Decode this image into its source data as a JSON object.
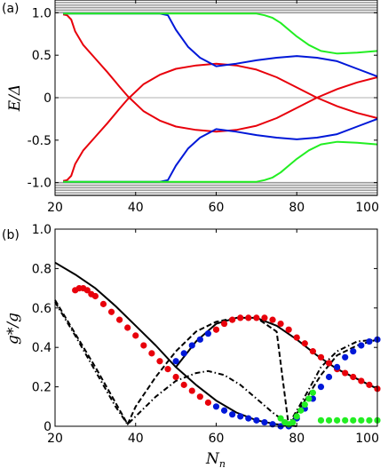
{
  "colors": {
    "red": "#e8000b",
    "blue": "#0018d8",
    "green": "#22ee22",
    "gray": "#9a9a9a",
    "black": "#000000"
  },
  "chart_data": [
    {
      "panel": "(a)",
      "type": "line",
      "xlabel": "",
      "ylabel": "E/Δ",
      "xlim": [
        20,
        100
      ],
      "ylim": [
        -1.15,
        1.15
      ],
      "xticks": [
        "20",
        "40",
        "60",
        "80",
        "100"
      ],
      "yticks": [
        "1.0",
        "0.5",
        "0",
        "-0.5",
        "-1.0"
      ],
      "yticks_values": [
        1.0,
        0.5,
        0,
        -0.5,
        -1.0
      ],
      "reference_line_y": 0,
      "bulk_band_levels": [
        1.0,
        1.03,
        1.06,
        1.09,
        1.12,
        1.15
      ],
      "series": [
        {
          "color_key": "red",
          "x": [
            22,
            23,
            24,
            25,
            27,
            30,
            33,
            36,
            38,
            42,
            46,
            50,
            55,
            60,
            65,
            70,
            75,
            80,
            85,
            90,
            95,
            100
          ],
          "y": [
            0.98,
            0.97,
            0.92,
            0.78,
            0.62,
            0.46,
            0.3,
            0.13,
            0.02,
            -0.16,
            -0.27,
            -0.34,
            -0.38,
            -0.4,
            -0.38,
            -0.33,
            -0.24,
            -0.12,
            0.0,
            0.1,
            0.18,
            0.24
          ]
        },
        {
          "color_key": "red",
          "x": [
            22,
            23,
            24,
            25,
            27,
            30,
            33,
            36,
            38,
            42,
            46,
            50,
            55,
            60,
            65,
            70,
            75,
            80,
            85,
            90,
            95,
            100
          ],
          "y": [
            -0.98,
            -0.97,
            -0.92,
            -0.78,
            -0.62,
            -0.46,
            -0.3,
            -0.13,
            -0.02,
            0.16,
            0.27,
            0.34,
            0.38,
            0.4,
            0.38,
            0.33,
            0.24,
            0.12,
            0.0,
            -0.1,
            -0.18,
            -0.24
          ]
        },
        {
          "color_key": "blue",
          "x": [
            22,
            30,
            40,
            46,
            48,
            50,
            53,
            56,
            60,
            65,
            70,
            75,
            80,
            85,
            90,
            95,
            100
          ],
          "y": [
            0.99,
            0.99,
            0.99,
            0.99,
            0.97,
            0.8,
            0.6,
            0.47,
            0.37,
            0.4,
            0.44,
            0.47,
            0.49,
            0.47,
            0.43,
            0.34,
            0.25
          ]
        },
        {
          "color_key": "blue",
          "x": [
            22,
            30,
            40,
            46,
            48,
            50,
            53,
            56,
            60,
            65,
            70,
            75,
            80,
            85,
            90,
            95,
            100
          ],
          "y": [
            -0.99,
            -0.99,
            -0.99,
            -0.99,
            -0.97,
            -0.8,
            -0.6,
            -0.47,
            -0.37,
            -0.4,
            -0.44,
            -0.47,
            -0.49,
            -0.47,
            -0.43,
            -0.34,
            -0.25
          ]
        },
        {
          "color_key": "green",
          "x": [
            22,
            40,
            60,
            70,
            72,
            74,
            76,
            78,
            80,
            83,
            86,
            90,
            95,
            100
          ],
          "y": [
            0.99,
            0.99,
            0.99,
            0.99,
            0.97,
            0.94,
            0.88,
            0.8,
            0.72,
            0.62,
            0.55,
            0.52,
            0.53,
            0.55
          ]
        },
        {
          "color_key": "green",
          "x": [
            22,
            40,
            60,
            70,
            72,
            74,
            76,
            78,
            80,
            83,
            86,
            90,
            95,
            100
          ],
          "y": [
            -0.99,
            -0.99,
            -0.99,
            -0.99,
            -0.97,
            -0.94,
            -0.88,
            -0.8,
            -0.72,
            -0.62,
            -0.55,
            -0.52,
            -0.53,
            -0.55
          ]
        }
      ]
    },
    {
      "panel": "(b)",
      "type": "line",
      "xlabel": "N_n",
      "ylabel": "g*/g",
      "xlim": [
        20,
        100
      ],
      "ylim": [
        0,
        1.0
      ],
      "xticks": [
        "20",
        "40",
        "60",
        "80",
        "100"
      ],
      "yticks": [
        "0",
        "0.2",
        "0.4",
        "0.6",
        "0.8",
        "1.0"
      ],
      "yticks_values": [
        0,
        0.2,
        0.4,
        0.6,
        0.8,
        1.0
      ],
      "series": [
        {
          "style": "solid",
          "color_key": "black",
          "x": [
            20,
            25,
            30,
            35,
            40,
            45,
            50,
            55,
            60,
            65,
            70,
            75,
            80
          ],
          "y": [
            0.83,
            0.77,
            0.7,
            0.61,
            0.51,
            0.41,
            0.3,
            0.21,
            0.13,
            0.07,
            0.03,
            0.01,
            0.0
          ]
        },
        {
          "style": "solid",
          "color_key": "black",
          "x": [
            50,
            55,
            60,
            65,
            70,
            75,
            80,
            85,
            90,
            95,
            100
          ],
          "y": [
            0.3,
            0.43,
            0.52,
            0.55,
            0.55,
            0.51,
            0.44,
            0.36,
            0.29,
            0.24,
            0.19
          ]
        },
        {
          "style": "dashed",
          "color_key": "black",
          "x": [
            20,
            25,
            30,
            35,
            38,
            40,
            45,
            50,
            55,
            60,
            65,
            70,
            75,
            78,
            82,
            86,
            90,
            95,
            100
          ],
          "y": [
            0.64,
            0.47,
            0.3,
            0.12,
            0.01,
            0.1,
            0.25,
            0.38,
            0.48,
            0.53,
            0.55,
            0.55,
            0.48,
            0.0,
            0.13,
            0.26,
            0.36,
            0.41,
            0.44
          ]
        },
        {
          "style": "dashdot",
          "color_key": "black",
          "x": [
            20,
            25,
            30,
            35,
            38,
            40,
            45,
            50,
            55,
            58,
            62,
            66,
            70,
            74,
            78,
            82,
            86,
            90,
            95,
            100
          ],
          "y": [
            0.63,
            0.46,
            0.28,
            0.1,
            0.01,
            0.05,
            0.15,
            0.23,
            0.27,
            0.28,
            0.26,
            0.21,
            0.14,
            0.07,
            0.01,
            0.15,
            0.3,
            0.38,
            0.43,
            0.44
          ]
        },
        {
          "style": "markers",
          "color_key": "red",
          "x": [
            25,
            26,
            27,
            28,
            29,
            30,
            32,
            34,
            36,
            38,
            40,
            42,
            44,
            46,
            48,
            50,
            52,
            54,
            56,
            58,
            60,
            62,
            64,
            66,
            68,
            70,
            72,
            74,
            76,
            78,
            80,
            82,
            84,
            86,
            88,
            90,
            92,
            94,
            96,
            98,
            100
          ],
          "y": [
            0.69,
            0.7,
            0.7,
            0.69,
            0.67,
            0.66,
            0.62,
            0.58,
            0.54,
            0.5,
            0.46,
            0.41,
            0.37,
            0.33,
            0.29,
            0.25,
            0.21,
            0.18,
            0.15,
            0.12,
            0.49,
            0.52,
            0.54,
            0.55,
            0.55,
            0.55,
            0.55,
            0.54,
            0.52,
            0.49,
            0.45,
            0.42,
            0.38,
            0.35,
            0.32,
            0.29,
            0.27,
            0.25,
            0.23,
            0.21,
            0.19
          ]
        },
        {
          "style": "markers",
          "color_key": "blue",
          "x": [
            50,
            52,
            54,
            56,
            58,
            60,
            62,
            64,
            66,
            68,
            70,
            72,
            74,
            76,
            78,
            80,
            82,
            84,
            86,
            88,
            90,
            92,
            94,
            96,
            98,
            100
          ],
          "y": [
            0.33,
            0.37,
            0.41,
            0.44,
            0.47,
            0.1,
            0.08,
            0.06,
            0.05,
            0.04,
            0.03,
            0.02,
            0.01,
            0.0,
            0.0,
            0.04,
            0.09,
            0.14,
            0.2,
            0.25,
            0.3,
            0.35,
            0.38,
            0.41,
            0.43,
            0.44
          ]
        },
        {
          "style": "markers",
          "color_key": "green",
          "x": [
            76,
            77,
            78,
            79,
            80,
            81,
            82,
            83,
            84,
            86,
            88,
            90,
            92,
            94,
            96,
            98,
            100
          ],
          "y": [
            0.04,
            0.02,
            0.01,
            0.02,
            0.05,
            0.08,
            0.11,
            0.14,
            0.17,
            0.03,
            0.03,
            0.03,
            0.03,
            0.03,
            0.03,
            0.03,
            0.03
          ]
        }
      ]
    }
  ]
}
